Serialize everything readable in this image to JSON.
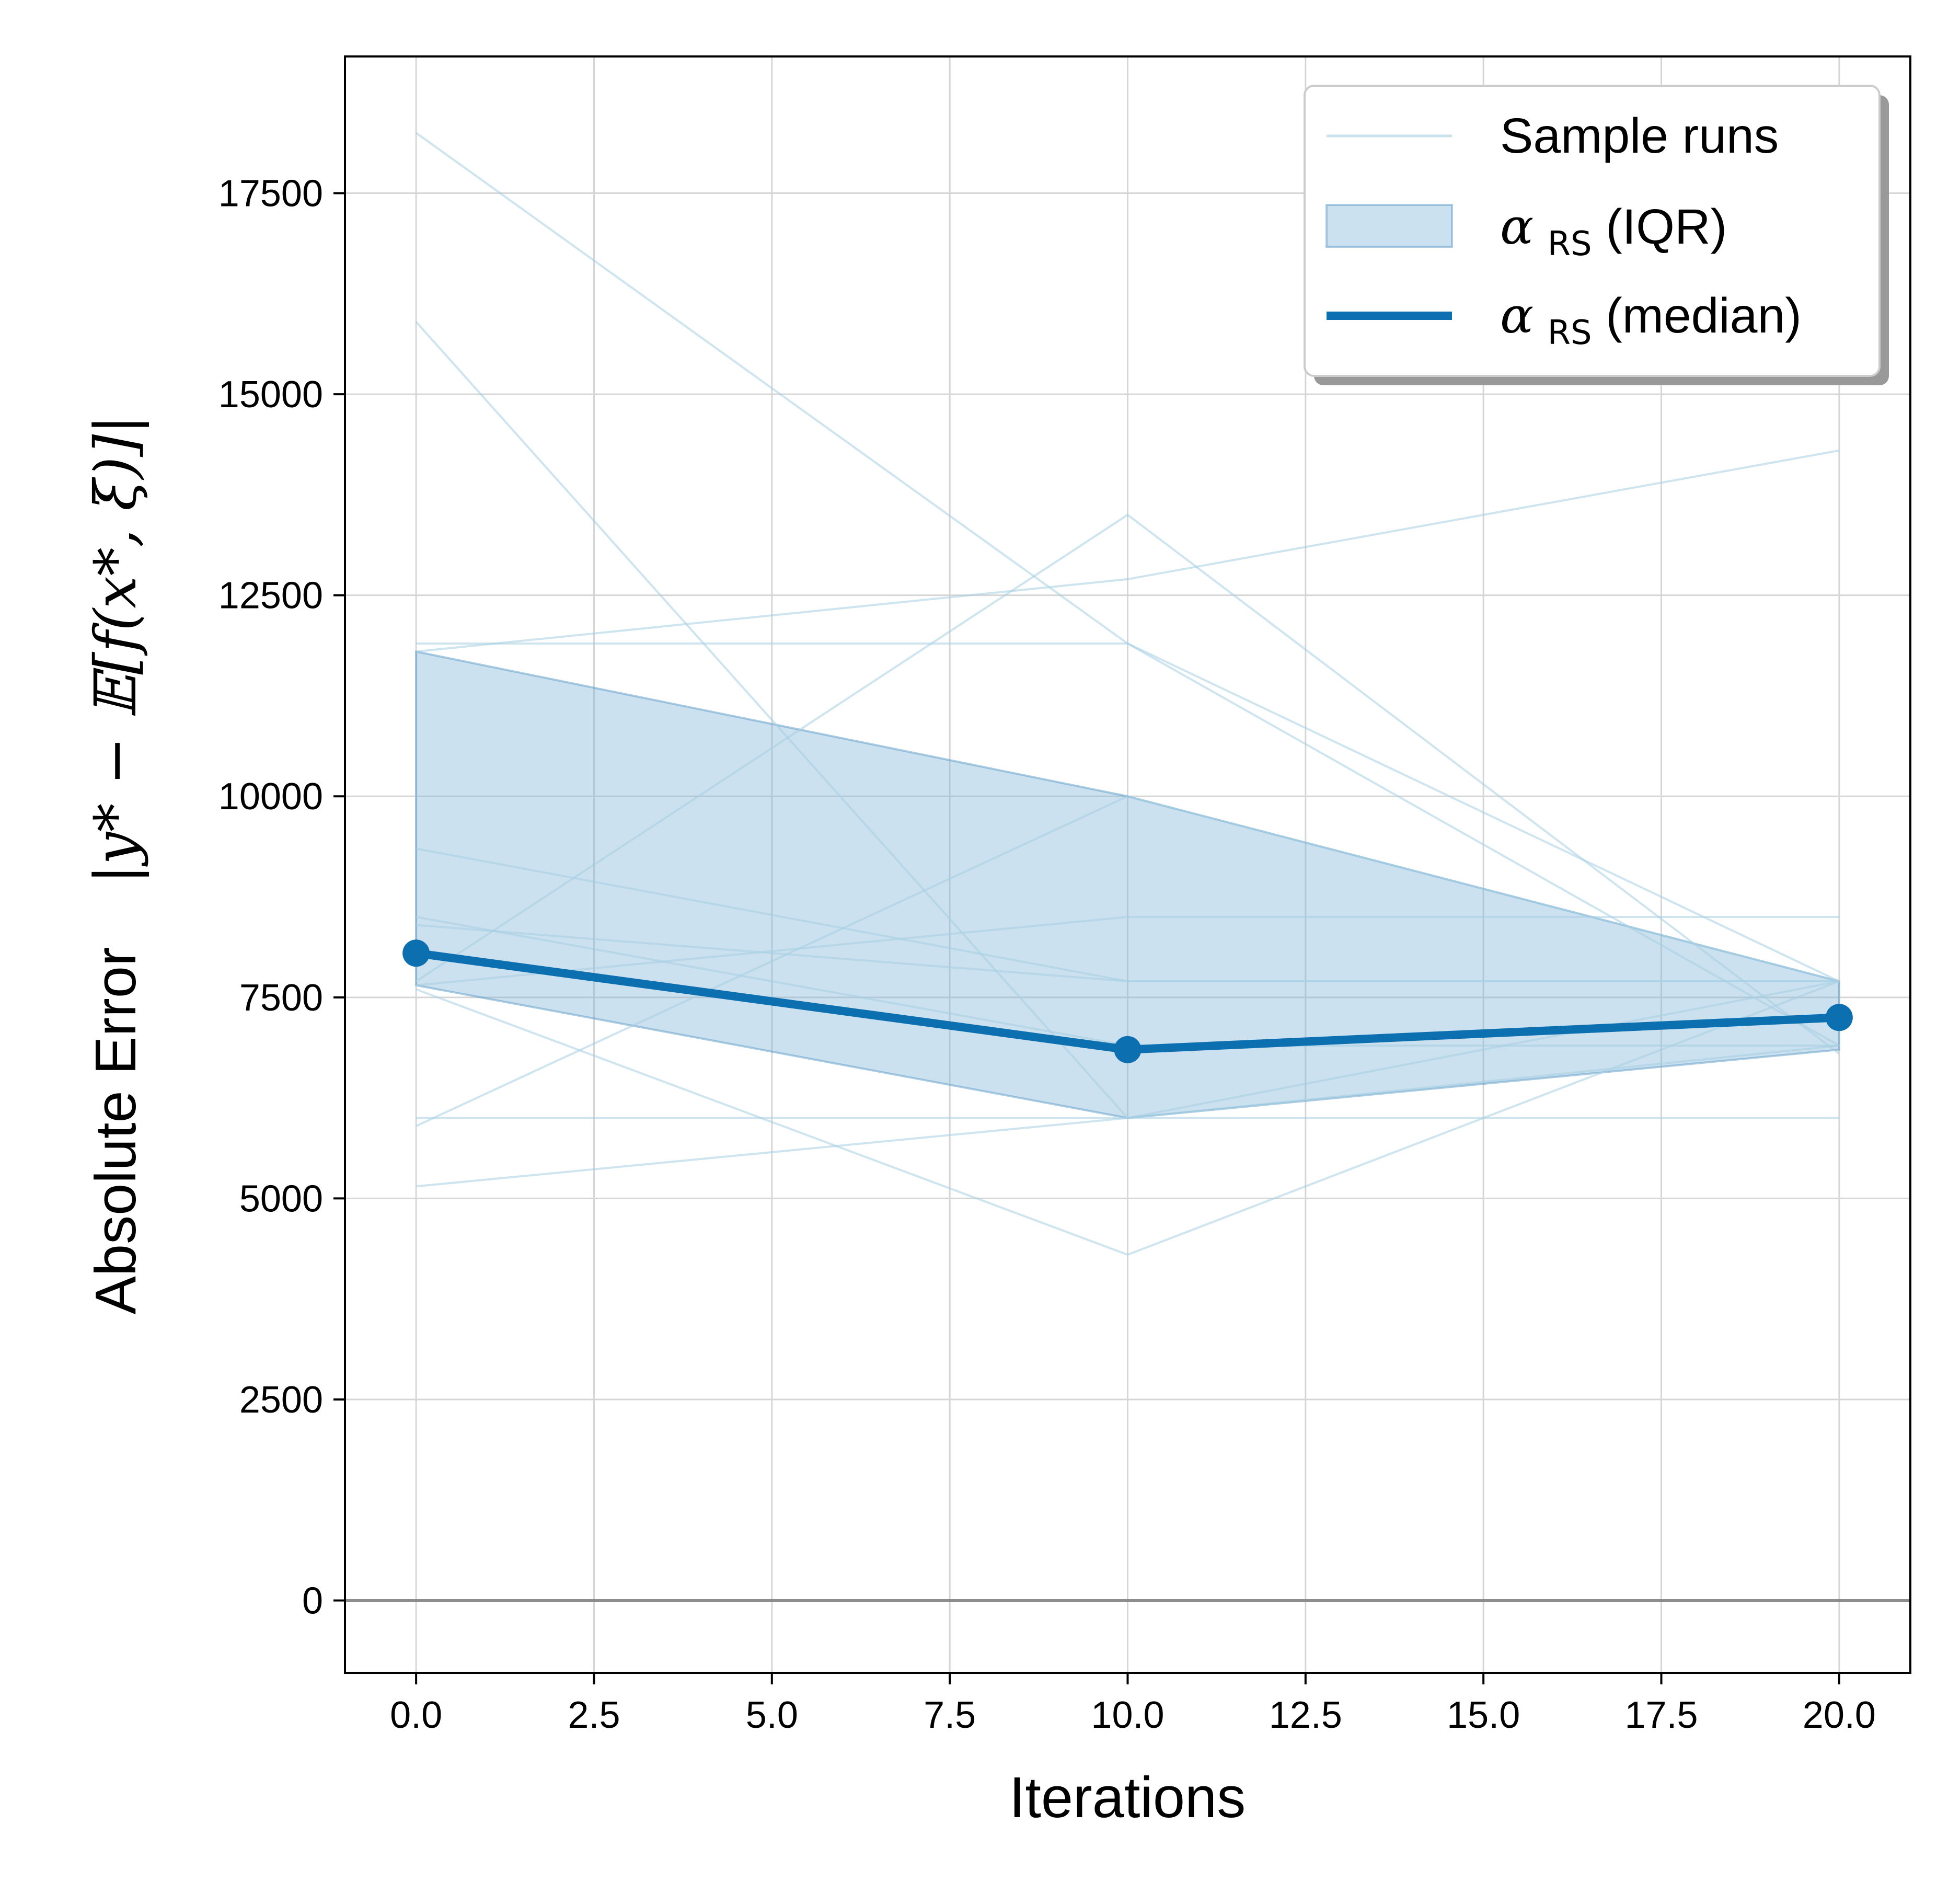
{
  "chart_data": {
    "type": "line",
    "xlabel": "Iterations",
    "ylabel": {
      "text": "Absolute Error",
      "math": "|y* − 𝔼[f(x*, ξ)]|"
    },
    "xlim": [
      -1,
      21
    ],
    "ylim": [
      -900,
      19200
    ],
    "xticks": [
      0,
      2.5,
      5,
      7.5,
      10,
      12.5,
      15,
      17.5,
      20
    ],
    "xtick_labels": [
      "0.0",
      "2.5",
      "5.0",
      "7.5",
      "10.0",
      "12.5",
      "15.0",
      "17.5",
      "20.0"
    ],
    "yticks": [
      0,
      2500,
      5000,
      7500,
      10000,
      12500,
      15000,
      17500
    ],
    "ytick_labels": [
      "0",
      "2500",
      "5000",
      "7500",
      "10000",
      "12500",
      "15000",
      "17500"
    ],
    "grid": true,
    "legend_position": "top-right",
    "legend": [
      {
        "kind": "line",
        "label": "Sample runs"
      },
      {
        "kind": "patch",
        "label_sym": "α",
        "label_sub": "RS",
        "label_rest": " (IQR)"
      },
      {
        "kind": "thickline",
        "label_sym": "α",
        "label_sub": "RS",
        "label_rest": " (median)"
      }
    ],
    "colors": {
      "sample": "#a6cfe3",
      "iqr_fill": "#7fb5d8",
      "iqr_edge": "#5b9cc8",
      "median": "#0b6fb0",
      "zero_line": "#8c8c8c",
      "grid": "#d6d6d6"
    },
    "x": [
      0,
      10,
      20
    ],
    "sample_runs": [
      [
        18250,
        11900,
        6900
      ],
      [
        15900,
        6000,
        6900
      ],
      [
        11900,
        11900,
        7700
      ],
      [
        11800,
        12700,
        14300
      ],
      [
        9350,
        7700,
        7700
      ],
      [
        8500,
        6900,
        6900
      ],
      [
        8400,
        7700,
        7700
      ],
      [
        7700,
        13500,
        6800
      ],
      [
        7650,
        8500,
        8500
      ],
      [
        7600,
        4300,
        7700
      ],
      [
        5900,
        10000,
        7700
      ],
      [
        6000,
        6000,
        6000
      ],
      [
        5150,
        6000,
        7700
      ]
    ],
    "iqr_upper": [
      11800,
      10000,
      7700
    ],
    "iqr_lower": [
      7650,
      6000,
      6850
    ],
    "median": [
      8050,
      6850,
      7250
    ]
  }
}
